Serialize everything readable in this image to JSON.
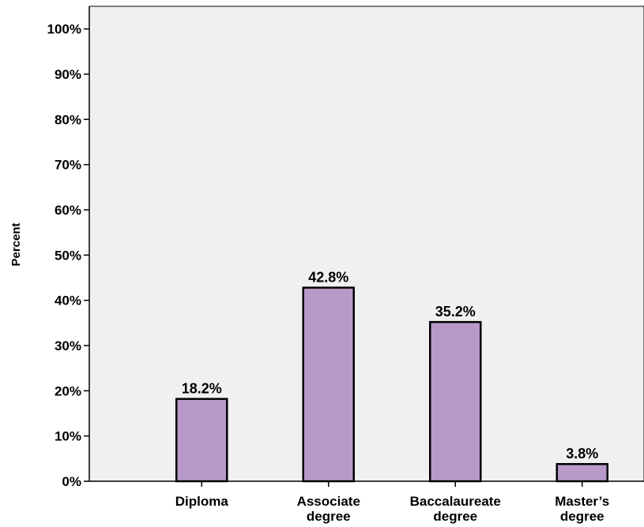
{
  "chart_data": {
    "type": "bar",
    "title": "",
    "xlabel": "",
    "ylabel": "Percent",
    "ylim": [
      0,
      105
    ],
    "y_ticks": [
      "0%",
      "10%",
      "20%",
      "30%",
      "40%",
      "50%",
      "60%",
      "70%",
      "80%",
      "90%",
      "100%"
    ],
    "y_tick_values": [
      0,
      10,
      20,
      30,
      40,
      50,
      60,
      70,
      80,
      90,
      100
    ],
    "categories": [
      [
        "Diploma"
      ],
      [
        "Associate",
        "degree"
      ],
      [
        "Baccalaureate",
        "degree"
      ],
      [
        "Master’s",
        "degree"
      ]
    ],
    "values": [
      18.2,
      42.8,
      35.2,
      3.8
    ],
    "data_labels": [
      "18.2%",
      "42.8%",
      "35.2%",
      "3.8%"
    ],
    "grid": false,
    "legend": "none",
    "colors": {
      "bar_fill": "#b89ac9",
      "bar_stroke": "#000000",
      "plot_background": "#f0f0f0",
      "page_background": "#ffffff"
    }
  }
}
